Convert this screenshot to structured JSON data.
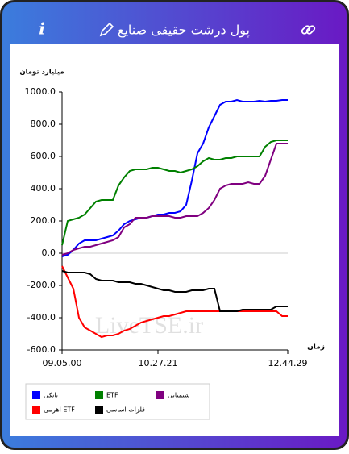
{
  "header": {
    "info": "i",
    "title": "پول درشت حقیقی صنایع"
  },
  "watermark": "LiveTSE.ir",
  "chart_data": {
    "type": "line",
    "ylabel": "میلیارد تومان",
    "xlabel": "زمان",
    "categories": [
      "09.05.00",
      null,
      null,
      null,
      null,
      null,
      null,
      null,
      null,
      null,
      null,
      null,
      null,
      null,
      null,
      null,
      null,
      "10.27.21",
      null,
      null,
      null,
      null,
      null,
      null,
      null,
      null,
      null,
      null,
      null,
      null,
      null,
      null,
      null,
      null,
      null,
      null,
      null,
      null,
      null,
      null,
      "12.44.29"
    ],
    "ylim": [
      -600,
      1000
    ],
    "yticks": [
      {
        "value": -600,
        "label": "-600.0"
      },
      {
        "value": -400,
        "label": "-400.0"
      },
      {
        "value": -200,
        "label": "-200.0"
      },
      {
        "value": 0,
        "label": "0.0"
      },
      {
        "value": 200,
        "label": "200.0"
      },
      {
        "value": 400,
        "label": "400.0"
      },
      {
        "value": 600,
        "label": "600.0"
      },
      {
        "value": 800,
        "label": "800.0"
      },
      {
        "value": 1000,
        "label": "1000.0"
      }
    ],
    "zero_line": true,
    "series": [
      {
        "name": "بانکی",
        "color": "#0000ff",
        "values": [
          -20,
          -10,
          20,
          60,
          80,
          80,
          80,
          90,
          100,
          110,
          140,
          180,
          200,
          210,
          220,
          220,
          230,
          240,
          240,
          250,
          250,
          260,
          300,
          450,
          620,
          680,
          780,
          850,
          920,
          940,
          940,
          950,
          940,
          940,
          940,
          945,
          940,
          945,
          945,
          950,
          950
        ]
      },
      {
        "name": "ETF",
        "color": "#008000",
        "values": [
          50,
          200,
          210,
          220,
          240,
          280,
          320,
          330,
          330,
          330,
          420,
          470,
          510,
          520,
          520,
          520,
          530,
          530,
          520,
          510,
          510,
          500,
          510,
          520,
          540,
          570,
          590,
          580,
          580,
          590,
          590,
          600,
          600,
          600,
          600,
          600,
          660,
          690,
          700,
          700,
          700
        ]
      },
      {
        "name": "شیمیایی",
        "color": "#800080",
        "values": [
          -10,
          0,
          20,
          30,
          40,
          40,
          50,
          60,
          70,
          80,
          100,
          160,
          180,
          220,
          220,
          220,
          230,
          230,
          230,
          230,
          220,
          220,
          230,
          230,
          230,
          250,
          280,
          330,
          400,
          420,
          430,
          430,
          430,
          440,
          430,
          430,
          480,
          580,
          680,
          680,
          680
        ]
      },
      {
        "name": "اهرمی ETF",
        "color": "#ff0000",
        "values": [
          -80,
          -150,
          -220,
          -400,
          -460,
          -480,
          -500,
          -520,
          -510,
          -510,
          -500,
          -480,
          -470,
          -450,
          -430,
          -420,
          -410,
          -400,
          -390,
          -390,
          -380,
          -370,
          -360,
          -360,
          -360,
          -360,
          -360,
          -360,
          -360,
          -360,
          -360,
          -360,
          -360,
          -360,
          -360,
          -360,
          -360,
          -360,
          -360,
          -390,
          -390
        ]
      },
      {
        "name": "فلزات اساسی",
        "color": "#000000",
        "values": [
          -110,
          -120,
          -120,
          -120,
          -120,
          -130,
          -160,
          -170,
          -170,
          -170,
          -180,
          -180,
          -180,
          -190,
          -190,
          -200,
          -210,
          -220,
          -230,
          -230,
          -240,
          -240,
          -240,
          -230,
          -230,
          -230,
          -220,
          -220,
          -360,
          -360,
          -360,
          -360,
          -350,
          -350,
          -350,
          -350,
          -350,
          -350,
          -330,
          -330,
          -330
        ]
      }
    ]
  }
}
